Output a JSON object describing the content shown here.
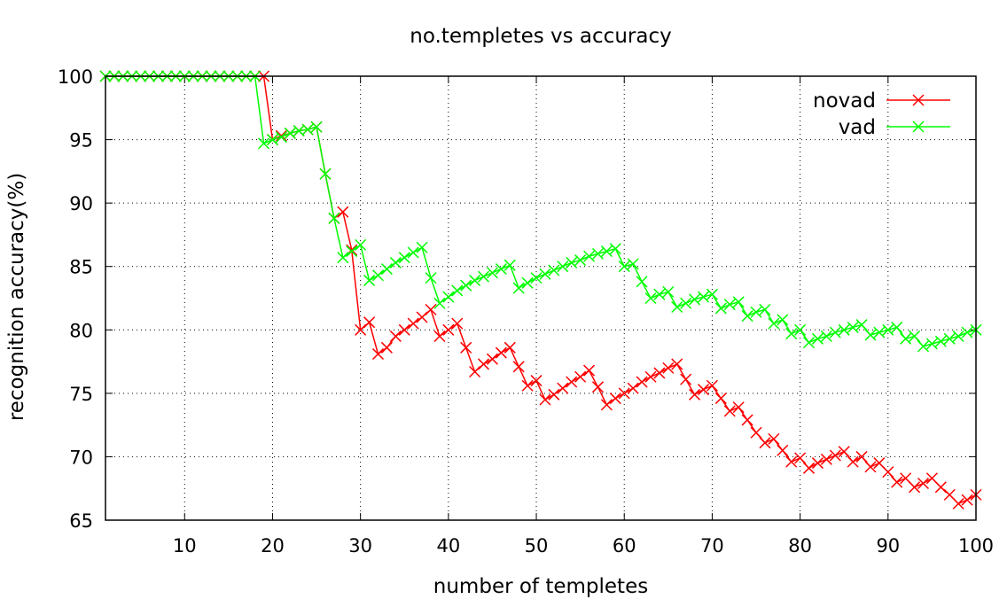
{
  "chart_data": {
    "type": "line",
    "title": "no.templetes vs accuracy",
    "xlabel": "number of templetes",
    "ylabel": "recognition accuracy(%)",
    "xlim": [
      1,
      100
    ],
    "ylim": [
      65,
      100
    ],
    "xticks": [
      10,
      20,
      30,
      40,
      50,
      60,
      70,
      80,
      90,
      100
    ],
    "yticks": [
      65,
      70,
      75,
      80,
      85,
      90,
      95,
      100
    ],
    "grid": true,
    "legend_position": "top-right",
    "marker": "x",
    "x": [
      1,
      2,
      3,
      4,
      5,
      6,
      7,
      8,
      9,
      10,
      11,
      12,
      13,
      14,
      15,
      16,
      17,
      18,
      19,
      20,
      21,
      22,
      23,
      24,
      25,
      26,
      27,
      28,
      29,
      30,
      31,
      32,
      33,
      34,
      35,
      36,
      37,
      38,
      39,
      40,
      41,
      42,
      43,
      44,
      45,
      46,
      47,
      48,
      49,
      50,
      51,
      52,
      53,
      54,
      55,
      56,
      57,
      58,
      59,
      60,
      61,
      62,
      63,
      64,
      65,
      66,
      67,
      68,
      69,
      70,
      71,
      72,
      73,
      74,
      75,
      76,
      77,
      78,
      79,
      80,
      81,
      82,
      83,
      84,
      85,
      86,
      87,
      88,
      89,
      90,
      91,
      92,
      93,
      94,
      95,
      96,
      97,
      98,
      99,
      100
    ],
    "series": [
      {
        "name": "novad",
        "color": "#ff0000",
        "values": [
          100,
          100,
          100,
          100,
          100,
          100,
          100,
          100,
          100,
          100,
          100,
          100,
          100,
          100,
          100,
          100,
          100,
          100,
          100,
          95.0,
          95.3,
          95.5,
          95.7,
          95.8,
          96.0,
          92.3,
          88.8,
          89.3,
          86.3,
          80.0,
          80.6,
          78.1,
          78.6,
          79.5,
          80.0,
          80.5,
          81.0,
          81.6,
          79.5,
          80.0,
          80.5,
          78.6,
          76.7,
          77.3,
          77.7,
          78.2,
          78.6,
          77.1,
          75.6,
          76.0,
          74.5,
          74.9,
          75.4,
          75.9,
          76.3,
          76.8,
          75.5,
          74.1,
          74.6,
          75.0,
          75.4,
          75.9,
          76.3,
          76.6,
          77.0,
          77.3,
          76.1,
          74.9,
          75.3,
          75.6,
          74.6,
          73.6,
          73.9,
          72.9,
          71.9,
          71.1,
          71.4,
          70.5,
          69.6,
          69.9,
          69.1,
          69.5,
          69.8,
          70.1,
          70.4,
          69.6,
          70.0,
          69.2,
          69.5,
          68.8,
          68.0,
          68.3,
          67.6,
          67.9,
          68.3,
          67.6,
          67.0,
          66.3,
          66.6,
          67.0
        ]
      },
      {
        "name": "vad",
        "color": "#00ff00",
        "values": [
          100,
          100,
          100,
          100,
          100,
          100,
          100,
          100,
          100,
          100,
          100,
          100,
          100,
          100,
          100,
          100,
          100,
          100,
          94.7,
          95.0,
          95.2,
          95.5,
          95.7,
          95.8,
          96.0,
          92.3,
          88.8,
          85.7,
          86.2,
          86.7,
          83.9,
          84.3,
          84.8,
          85.3,
          85.7,
          86.1,
          86.5,
          84.1,
          82.1,
          82.6,
          83.1,
          83.5,
          83.9,
          84.2,
          84.5,
          84.8,
          85.1,
          83.3,
          83.7,
          84.1,
          84.4,
          84.7,
          85.0,
          85.3,
          85.5,
          85.8,
          86.0,
          86.2,
          86.4,
          85.0,
          85.2,
          83.8,
          82.5,
          82.8,
          83.0,
          81.8,
          82.1,
          82.4,
          82.6,
          82.8,
          81.7,
          82.0,
          82.2,
          81.1,
          81.4,
          81.6,
          80.5,
          80.8,
          79.7,
          80.0,
          79.0,
          79.3,
          79.5,
          79.8,
          80.0,
          80.2,
          80.4,
          79.6,
          79.8,
          80.0,
          80.2,
          79.3,
          79.5,
          78.7,
          78.9,
          79.1,
          79.3,
          79.5,
          79.8,
          80.0
        ]
      }
    ]
  }
}
